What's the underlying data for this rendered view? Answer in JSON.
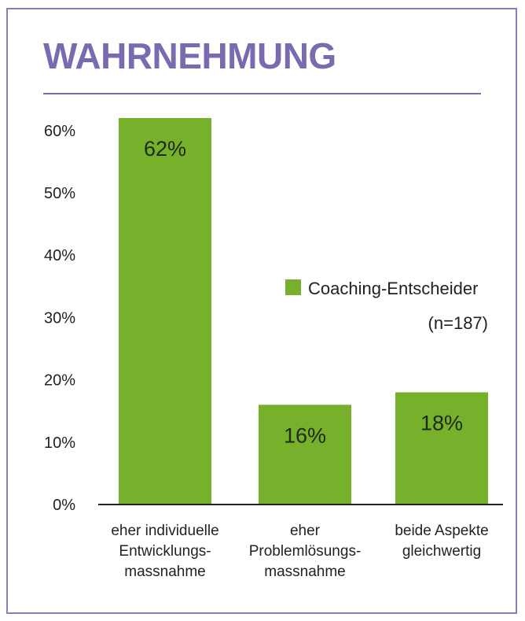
{
  "title": "WAHRNEHMUNG",
  "colors": {
    "accent": "#7a6bb0",
    "bar": "#77b02a",
    "border": "#8b7fb8"
  },
  "chart_data": {
    "type": "bar",
    "title": "WAHRNEHMUNG",
    "xlabel": "",
    "ylabel": "",
    "ylim": [
      0,
      60
    ],
    "yticks": [
      0,
      10,
      20,
      30,
      40,
      50,
      60
    ],
    "ytick_labels": [
      "0%",
      "10%",
      "20%",
      "30%",
      "40%",
      "50%",
      "60%"
    ],
    "grid": false,
    "legend_position": "right",
    "categories": [
      [
        "eher individuelle",
        "Entwicklungs-",
        "massnahme"
      ],
      [
        "eher",
        "Problemlösungs-",
        "massnahme"
      ],
      [
        "beide Aspekte",
        "gleichwertig"
      ]
    ],
    "series": [
      {
        "name": "Coaching-Entscheider",
        "note": "(n=187)",
        "values": [
          62,
          16,
          18
        ],
        "labels": [
          "62%",
          "16%",
          "18%"
        ],
        "color": "#77b02a"
      }
    ]
  }
}
